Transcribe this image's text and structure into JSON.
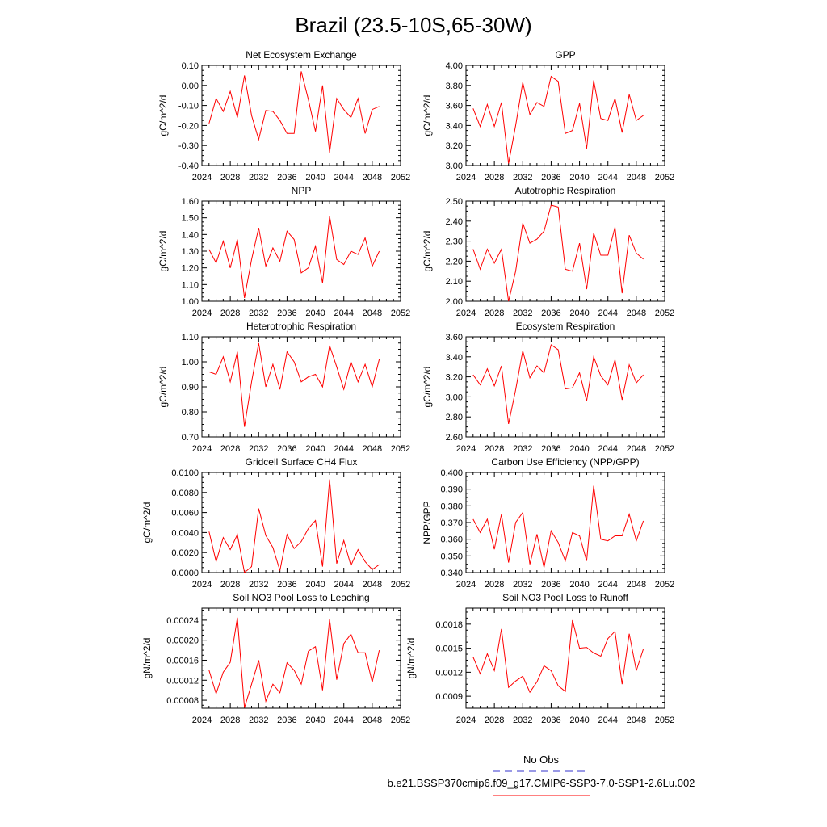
{
  "figure": {
    "title": "Brazil (23.5-10S,65-30W)"
  },
  "legend": {
    "entries": [
      {
        "label": "No Obs",
        "color": "#3333cc",
        "style": "dashed"
      },
      {
        "label": "b.e21.BSSP370cmip6.f09_g17.CMIP6-SSP3-7.0-SSP1-2.6Lu.002",
        "color": "#ff0000",
        "style": "solid"
      }
    ]
  },
  "colors": {
    "series": "#ff0000",
    "obs": "#3333cc",
    "axis": "#000000"
  },
  "chart_data": [
    {
      "type": "line",
      "title": "Net Ecosystem Exchange",
      "xlabel": "",
      "ylabel": "gC/m^2/d",
      "xlim": [
        2024,
        2052
      ],
      "xticks": [
        "2024",
        "2028",
        "2032",
        "2036",
        "2040",
        "2044",
        "2048",
        "2052"
      ],
      "ylim": [
        -0.4,
        0.1
      ],
      "yticks": [
        "-0.40",
        "-0.30",
        "-0.20",
        "-0.10",
        "0.00",
        "0.10"
      ],
      "x": [
        2025,
        2026,
        2027,
        2028,
        2029,
        2030,
        2031,
        2032,
        2033,
        2034,
        2035,
        2036,
        2037,
        2038,
        2039,
        2040,
        2041,
        2042,
        2043,
        2044,
        2045,
        2046,
        2047,
        2048,
        2049
      ],
      "series": [
        {
          "values": [
            -0.19,
            -0.065,
            -0.13,
            -0.03,
            -0.16,
            0.05,
            -0.15,
            -0.27,
            -0.125,
            -0.13,
            -0.175,
            -0.24,
            -0.24,
            0.07,
            -0.07,
            -0.23,
            0.0,
            -0.335,
            -0.065,
            -0.12,
            -0.16,
            -0.065,
            -0.24,
            -0.12,
            -0.105
          ]
        }
      ]
    },
    {
      "type": "line",
      "title": "GPP",
      "xlabel": "",
      "ylabel": "gC/m^2/d",
      "xlim": [
        2024,
        2052
      ],
      "xticks": [
        "2024",
        "2028",
        "2032",
        "2036",
        "2040",
        "2044",
        "2048",
        "2052"
      ],
      "ylim": [
        3.0,
        4.0
      ],
      "yticks": [
        "3.00",
        "3.20",
        "3.40",
        "3.60",
        "3.80",
        "4.00"
      ],
      "x": [
        2025,
        2026,
        2027,
        2028,
        2029,
        2030,
        2031,
        2032,
        2033,
        2034,
        2035,
        2036,
        2037,
        2038,
        2039,
        2040,
        2041,
        2042,
        2043,
        2044,
        2045,
        2046,
        2047,
        2048,
        2049
      ],
      "series": [
        {
          "values": [
            3.57,
            3.39,
            3.61,
            3.39,
            3.63,
            3.02,
            3.4,
            3.83,
            3.51,
            3.63,
            3.59,
            3.89,
            3.84,
            3.32,
            3.35,
            3.62,
            3.17,
            3.85,
            3.47,
            3.45,
            3.67,
            3.33,
            3.71,
            3.45,
            3.5
          ]
        }
      ]
    },
    {
      "type": "line",
      "title": "NPP",
      "xlabel": "",
      "ylabel": "gC/m^2/d",
      "xlim": [
        2024,
        2052
      ],
      "xticks": [
        "2024",
        "2028",
        "2032",
        "2036",
        "2040",
        "2044",
        "2048",
        "2052"
      ],
      "ylim": [
        1.0,
        1.6
      ],
      "yticks": [
        "1.00",
        "1.10",
        "1.20",
        "1.30",
        "1.40",
        "1.50",
        "1.60"
      ],
      "x": [
        2025,
        2026,
        2027,
        2028,
        2029,
        2030,
        2031,
        2032,
        2033,
        2034,
        2035,
        2036,
        2037,
        2038,
        2039,
        2040,
        2041,
        2042,
        2043,
        2044,
        2045,
        2046,
        2047,
        2048,
        2049
      ],
      "series": [
        {
          "values": [
            1.31,
            1.23,
            1.36,
            1.2,
            1.37,
            1.02,
            1.25,
            1.44,
            1.21,
            1.32,
            1.24,
            1.42,
            1.37,
            1.17,
            1.2,
            1.33,
            1.11,
            1.51,
            1.25,
            1.22,
            1.3,
            1.28,
            1.38,
            1.21,
            1.3
          ]
        }
      ]
    },
    {
      "type": "line",
      "title": "Autotrophic Respiration",
      "xlabel": "",
      "ylabel": "gC/m^2/d",
      "xlim": [
        2024,
        2052
      ],
      "xticks": [
        "2024",
        "2028",
        "2032",
        "2036",
        "2040",
        "2044",
        "2048",
        "2052"
      ],
      "ylim": [
        2.0,
        2.5
      ],
      "yticks": [
        "2.00",
        "2.10",
        "2.20",
        "2.30",
        "2.40",
        "2.50"
      ],
      "x": [
        2025,
        2026,
        2027,
        2028,
        2029,
        2030,
        2031,
        2032,
        2033,
        2034,
        2035,
        2036,
        2037,
        2038,
        2039,
        2040,
        2041,
        2042,
        2043,
        2044,
        2045,
        2046,
        2047,
        2048,
        2049
      ],
      "series": [
        {
          "values": [
            2.26,
            2.16,
            2.26,
            2.19,
            2.26,
            2.0,
            2.15,
            2.39,
            2.29,
            2.31,
            2.35,
            2.48,
            2.47,
            2.16,
            2.15,
            2.29,
            2.06,
            2.34,
            2.23,
            2.23,
            2.37,
            2.04,
            2.33,
            2.24,
            2.21
          ]
        }
      ]
    },
    {
      "type": "line",
      "title": "Heterotrophic Respiration",
      "xlabel": "",
      "ylabel": "gC/m^2/d",
      "xlim": [
        2024,
        2052
      ],
      "xticks": [
        "2024",
        "2028",
        "2032",
        "2036",
        "2040",
        "2044",
        "2048",
        "2052"
      ],
      "ylim": [
        0.7,
        1.1
      ],
      "yticks": [
        "0.70",
        "0.80",
        "0.90",
        "1.00",
        "1.10"
      ],
      "x": [
        2025,
        2026,
        2027,
        2028,
        2029,
        2030,
        2031,
        2032,
        2033,
        2034,
        2035,
        2036,
        2037,
        2038,
        2039,
        2040,
        2041,
        2042,
        2043,
        2044,
        2045,
        2046,
        2047,
        2048,
        2049
      ],
      "series": [
        {
          "values": [
            0.96,
            0.95,
            1.02,
            0.92,
            1.04,
            0.74,
            0.92,
            1.075,
            0.9,
            0.99,
            0.89,
            1.04,
            1.0,
            0.92,
            0.94,
            0.95,
            0.9,
            1.065,
            0.98,
            0.89,
            1.0,
            0.92,
            0.99,
            0.9,
            1.01
          ]
        }
      ]
    },
    {
      "type": "line",
      "title": "Ecosystem Respiration",
      "xlabel": "",
      "ylabel": "gC/m^2/d",
      "xlim": [
        2024,
        2052
      ],
      "xticks": [
        "2024",
        "2028",
        "2032",
        "2036",
        "2040",
        "2044",
        "2048",
        "2052"
      ],
      "ylim": [
        2.6,
        3.6
      ],
      "yticks": [
        "2.60",
        "2.80",
        "3.00",
        "3.20",
        "3.40",
        "3.60"
      ],
      "x": [
        2025,
        2026,
        2027,
        2028,
        2029,
        2030,
        2031,
        2032,
        2033,
        2034,
        2035,
        2036,
        2037,
        2038,
        2039,
        2040,
        2041,
        2042,
        2043,
        2044,
        2045,
        2046,
        2047,
        2048,
        2049
      ],
      "series": [
        {
          "values": [
            3.22,
            3.12,
            3.28,
            3.11,
            3.31,
            2.73,
            3.07,
            3.46,
            3.19,
            3.31,
            3.24,
            3.52,
            3.47,
            3.08,
            3.09,
            3.24,
            2.96,
            3.4,
            3.21,
            3.12,
            3.37,
            2.97,
            3.32,
            3.14,
            3.22
          ]
        }
      ]
    },
    {
      "type": "line",
      "title": "Gridcell Surface CH4 Flux",
      "xlabel": "",
      "ylabel": "gC/m^2/d",
      "xlim": [
        2024,
        2052
      ],
      "xticks": [
        "2024",
        "2028",
        "2032",
        "2036",
        "2040",
        "2044",
        "2048",
        "2052"
      ],
      "ylim": [
        0.0,
        0.01
      ],
      "yticks": [
        "0.0000",
        "0.0020",
        "0.0040",
        "0.0060",
        "0.0080",
        "0.0100"
      ],
      "x": [
        2025,
        2026,
        2027,
        2028,
        2029,
        2030,
        2031,
        2032,
        2033,
        2034,
        2035,
        2036,
        2037,
        2038,
        2039,
        2040,
        2041,
        2042,
        2043,
        2044,
        2045,
        2046,
        2047,
        2048,
        2049
      ],
      "series": [
        {
          "values": [
            0.0041,
            0.0011,
            0.0035,
            0.0023,
            0.0038,
            0.0,
            0.0006,
            0.0064,
            0.0037,
            0.0025,
            0.0002,
            0.0038,
            0.0024,
            0.0031,
            0.0044,
            0.0052,
            0.0006,
            0.0093,
            0.0009,
            0.0032,
            0.0007,
            0.0023,
            0.0011,
            0.0003,
            0.0008
          ]
        }
      ]
    },
    {
      "type": "line",
      "title": "Carbon Use Efficiency (NPP/GPP)",
      "xlabel": "",
      "ylabel": "NPP/GPP",
      "xlim": [
        2024,
        2052
      ],
      "xticks": [
        "2024",
        "2028",
        "2032",
        "2036",
        "2040",
        "2044",
        "2048",
        "2052"
      ],
      "ylim": [
        0.34,
        0.4
      ],
      "yticks": [
        "0.340",
        "0.350",
        "0.360",
        "0.370",
        "0.380",
        "0.390",
        "0.400"
      ],
      "x": [
        2025,
        2026,
        2027,
        2028,
        2029,
        2030,
        2031,
        2032,
        2033,
        2034,
        2035,
        2036,
        2037,
        2038,
        2039,
        2040,
        2041,
        2042,
        2043,
        2044,
        2045,
        2046,
        2047,
        2048,
        2049
      ],
      "series": [
        {
          "values": [
            0.372,
            0.364,
            0.372,
            0.354,
            0.375,
            0.346,
            0.37,
            0.376,
            0.345,
            0.363,
            0.343,
            0.365,
            0.358,
            0.347,
            0.364,
            0.362,
            0.347,
            0.392,
            0.36,
            0.359,
            0.362,
            0.362,
            0.375,
            0.359,
            0.371
          ]
        }
      ]
    },
    {
      "type": "line",
      "title": "Soil NO3 Pool Loss to Leaching",
      "xlabel": "",
      "ylabel": "gN/m^2/d",
      "xlim": [
        2024,
        2052
      ],
      "xticks": [
        "2024",
        "2028",
        "2032",
        "2036",
        "2040",
        "2044",
        "2048",
        "2052"
      ],
      "ylim": [
        6.4e-05,
        0.000264
      ],
      "yticks": [
        "0.00008",
        "0.00012",
        "0.00016",
        "0.00020",
        "0.00024"
      ],
      "x": [
        2025,
        2026,
        2027,
        2028,
        2029,
        2030,
        2031,
        2032,
        2033,
        2034,
        2035,
        2036,
        2037,
        2038,
        2039,
        2040,
        2041,
        2042,
        2043,
        2044,
        2045,
        2046,
        2047,
        2048,
        2049
      ],
      "series": [
        {
          "values": [
            0.00014,
            9.3e-05,
            0.000136,
            0.000156,
            0.000245,
            6.5e-05,
            0.000112,
            0.00016,
            7.8e-05,
            0.000112,
            9.5e-05,
            0.000155,
            0.00014,
            0.000112,
            0.000178,
            0.000187,
            0.0001,
            0.000242,
            0.000121,
            0.000193,
            0.000212,
            0.000175,
            0.000175,
            0.000116,
            0.00018
          ]
        }
      ]
    },
    {
      "type": "line",
      "title": "Soil NO3 Pool Loss to Runoff",
      "xlabel": "",
      "ylabel": "gN/m^2/d",
      "xlim": [
        2024,
        2052
      ],
      "xticks": [
        "2024",
        "2028",
        "2032",
        "2036",
        "2040",
        "2044",
        "2048",
        "2052"
      ],
      "ylim": [
        0.00075,
        0.002
      ],
      "yticks": [
        "0.0009",
        "0.0012",
        "0.0015",
        "0.0018"
      ],
      "x": [
        2025,
        2026,
        2027,
        2028,
        2029,
        2030,
        2031,
        2032,
        2033,
        2034,
        2035,
        2036,
        2037,
        2038,
        2039,
        2040,
        2041,
        2042,
        2043,
        2044,
        2045,
        2046,
        2047,
        2048,
        2049
      ],
      "series": [
        {
          "values": [
            0.00139,
            0.00118,
            0.00143,
            0.00122,
            0.00174,
            0.00101,
            0.00109,
            0.00115,
            0.00095,
            0.00108,
            0.00128,
            0.00122,
            0.00103,
            0.00096,
            0.00185,
            0.0015,
            0.00151,
            0.00144,
            0.0014,
            0.00162,
            0.00171,
            0.00105,
            0.00168,
            0.00122,
            0.00149
          ]
        }
      ]
    }
  ]
}
